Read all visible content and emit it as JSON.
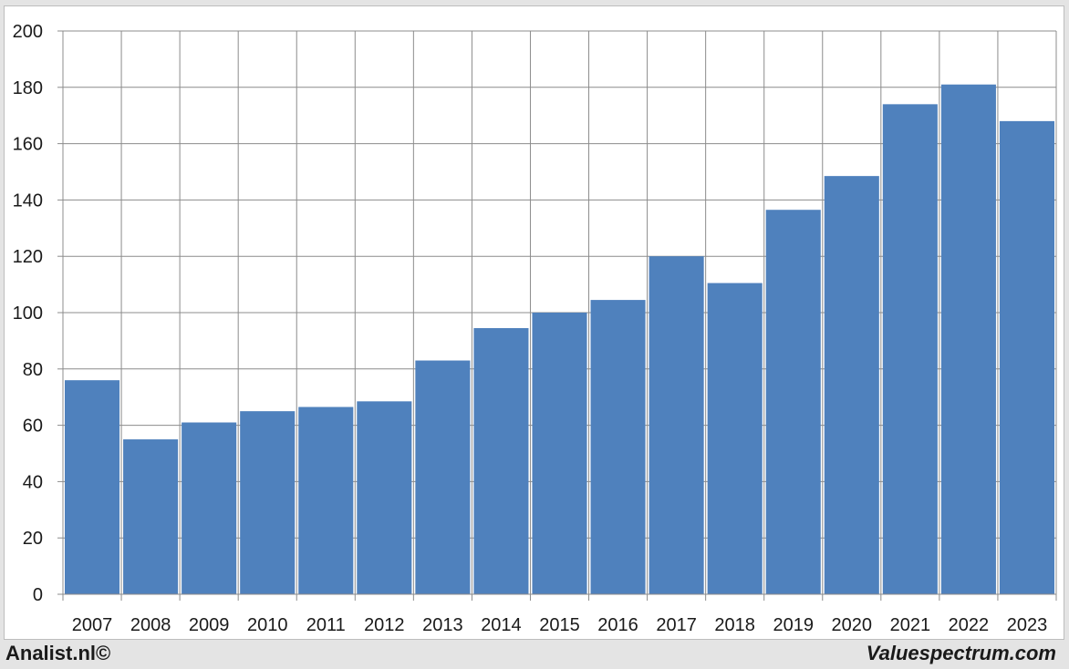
{
  "chart_data": {
    "type": "bar",
    "categories": [
      "2007",
      "2008",
      "2009",
      "2010",
      "2011",
      "2012",
      "2013",
      "2014",
      "2015",
      "2016",
      "2017",
      "2018",
      "2019",
      "2020",
      "2021",
      "2022",
      "2023"
    ],
    "values": [
      76,
      55,
      61,
      65,
      66.5,
      68.5,
      83,
      94.5,
      100,
      104.5,
      120,
      110.5,
      136.5,
      148.5,
      174,
      181,
      168
    ],
    "yticks": [
      0,
      20,
      40,
      60,
      80,
      100,
      120,
      140,
      160,
      180,
      200
    ],
    "ylim": [
      0,
      200
    ],
    "title": "",
    "xlabel": "",
    "ylabel": "",
    "grid": true,
    "bar_color": "#4f81bd"
  },
  "footer": {
    "left": "Analist.nl©",
    "right": "Valuespectrum.com"
  }
}
